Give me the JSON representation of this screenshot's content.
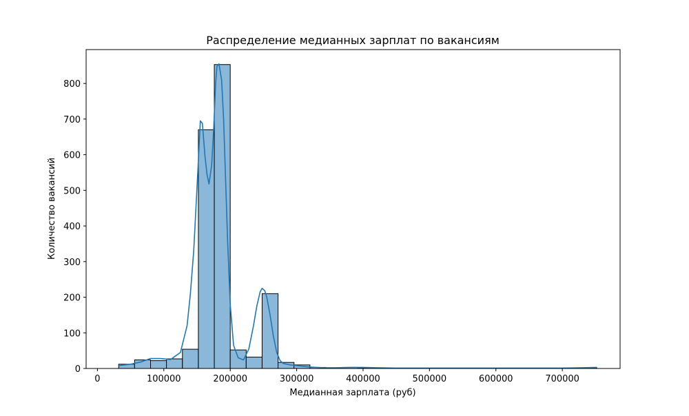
{
  "chart_data": {
    "type": "bar",
    "title": "Распределение медианных зарплат по вакансиям",
    "xlabel": "Медианная зарплата (руб)",
    "ylabel": "Количество вакансий",
    "xlim": [
      -17000,
      787000
    ],
    "ylim": [
      0,
      895
    ],
    "x_ticks": [
      0,
      100000,
      200000,
      300000,
      400000,
      500000,
      600000,
      700000
    ],
    "y_ticks": [
      0,
      100,
      200,
      300,
      400,
      500,
      600,
      700,
      800
    ],
    "grid": false,
    "bins": [
      {
        "x0": 32000,
        "x1": 56000,
        "count": 12
      },
      {
        "x0": 56000,
        "x1": 80000,
        "count": 24
      },
      {
        "x0": 80000,
        "x1": 104000,
        "count": 22
      },
      {
        "x0": 104000,
        "x1": 128000,
        "count": 27
      },
      {
        "x0": 128000,
        "x1": 152000,
        "count": 54
      },
      {
        "x0": 152000,
        "x1": 176000,
        "count": 670
      },
      {
        "x0": 176000,
        "x1": 200000,
        "count": 853
      },
      {
        "x0": 200000,
        "x1": 224000,
        "count": 52
      },
      {
        "x0": 224000,
        "x1": 248000,
        "count": 32
      },
      {
        "x0": 248000,
        "x1": 272000,
        "count": 210
      },
      {
        "x0": 272000,
        "x1": 296000,
        "count": 17
      },
      {
        "x0": 296000,
        "x1": 320000,
        "count": 10
      },
      {
        "x0": 320000,
        "x1": 344000,
        "count": 3
      },
      {
        "x0": 344000,
        "x1": 368000,
        "count": 2
      },
      {
        "x0": 368000,
        "x1": 392000,
        "count": 3
      },
      {
        "x0": 392000,
        "x1": 416000,
        "count": 2
      },
      {
        "x0": 416000,
        "x1": 440000,
        "count": 1
      },
      {
        "x0": 440000,
        "x1": 464000,
        "count": 1
      },
      {
        "x0": 464000,
        "x1": 488000,
        "count": 1
      },
      {
        "x0": 488000,
        "x1": 512000,
        "count": 1
      },
      {
        "x0": 512000,
        "x1": 536000,
        "count": 0
      },
      {
        "x0": 536000,
        "x1": 560000,
        "count": 0
      },
      {
        "x0": 560000,
        "x1": 584000,
        "count": 1
      },
      {
        "x0": 584000,
        "x1": 608000,
        "count": 0
      },
      {
        "x0": 608000,
        "x1": 632000,
        "count": 0
      },
      {
        "x0": 632000,
        "x1": 656000,
        "count": 0
      },
      {
        "x0": 656000,
        "x1": 680000,
        "count": 1
      },
      {
        "x0": 680000,
        "x1": 704000,
        "count": 0
      },
      {
        "x0": 704000,
        "x1": 728000,
        "count": 1
      },
      {
        "x0": 728000,
        "x1": 752000,
        "count": 2
      }
    ],
    "kde": {
      "x": [
        32000,
        50000,
        65000,
        80000,
        95000,
        110000,
        125000,
        135000,
        140000,
        145000,
        150000,
        155000,
        158000,
        162000,
        165000,
        168000,
        172000,
        175000,
        178000,
        180000,
        183000,
        187000,
        190000,
        193000,
        196000,
        200000,
        205000,
        212000,
        220000,
        228000,
        235000,
        240000,
        245000,
        248000,
        252000,
        255000,
        260000,
        265000,
        270000,
        275000,
        280000,
        290000,
        300000,
        320000,
        340000,
        360000,
        380000,
        400000,
        420000,
        450000,
        500000,
        550000,
        600000,
        650000,
        700000,
        730000,
        752000
      ],
      "y": [
        8,
        12,
        18,
        28,
        28,
        25,
        45,
        120,
        210,
        330,
        510,
        695,
        688,
        595,
        545,
        518,
        570,
        670,
        800,
        848,
        855,
        810,
        700,
        530,
        360,
        180,
        65,
        30,
        24,
        55,
        120,
        175,
        215,
        225,
        218,
        200,
        150,
        90,
        45,
        22,
        14,
        10,
        8,
        4,
        2,
        2,
        3,
        3,
        2,
        1,
        1,
        1,
        1,
        1,
        1,
        2,
        3
      ]
    },
    "colors": {
      "bar_fill": "#8bb8d8",
      "bar_edge": "#000000",
      "kde_line": "#1f77b4"
    }
  }
}
